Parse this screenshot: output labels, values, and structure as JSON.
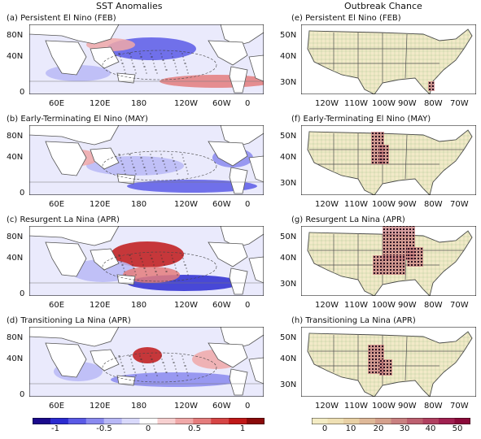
{
  "titles": {
    "left": "SST Anomalies",
    "right": "Outbreak Chance"
  },
  "sst_panels": [
    {
      "label": "(a) Persistent El Nino (FEB)"
    },
    {
      "label": "(b) Early-Terminating El Nino (MAY)"
    },
    {
      "label": "(c) Resurgent La Nina (APR)"
    },
    {
      "label": "(d) Transitioning La Nina (APR)"
    }
  ],
  "outbreak_panels": [
    {
      "label": "(e) Persistent El Nino (FEB)"
    },
    {
      "label": "(f) Early-Terminating El Nino (MAY)"
    },
    {
      "label": "(g) Resurgent La Nina (APR)"
    },
    {
      "label": "(h) Transitioning La Nina (APR)"
    }
  ],
  "sst_axes": {
    "lat_ticks": [
      "80N",
      "40N",
      "0"
    ],
    "lon_ticks": [
      "60E",
      "120E",
      "180",
      "120W",
      "60W",
      "0"
    ]
  },
  "us_axes": {
    "lat_ticks": [
      "50N",
      "40N",
      "30N"
    ],
    "lon_ticks": [
      "120W",
      "110W",
      "100W",
      "90W",
      "80W",
      "70W"
    ]
  },
  "sst_colorbar": {
    "labels": [
      "-1",
      "-0.5",
      "0",
      "0.5",
      "1"
    ],
    "colors": [
      "#1a0a8c",
      "#2b2bd0",
      "#5a5ae6",
      "#8a8aef",
      "#b8b8f6",
      "#d9d9fb",
      "#ffffff",
      "#f7d0d0",
      "#f0a8a8",
      "#e47c7c",
      "#d64545",
      "#c01818",
      "#8a0a0a"
    ]
  },
  "outbreak_colorbar": {
    "labels": [
      "0",
      "10",
      "20",
      "30",
      "40",
      "50"
    ],
    "colors": [
      "#f4ecc4",
      "#efe0b4",
      "#e8d0a4",
      "#deb898",
      "#d4a08c",
      "#c98080",
      "#bd6070",
      "#b04060",
      "#a02050",
      "#8a0a3a"
    ]
  },
  "colors": {
    "land": "#ffffff",
    "us_land": "#f2eac8",
    "warm": "#e38a8a",
    "cool": "#6a6ae2",
    "grid": "#9fbf8f"
  }
}
